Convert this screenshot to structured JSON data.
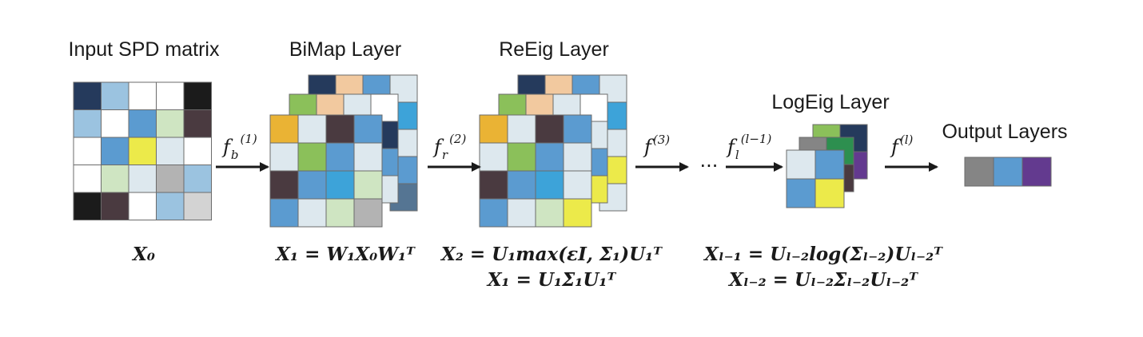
{
  "titles": {
    "input": "Input SPD matrix",
    "bimap": "BiMap Layer",
    "reeig": "ReEig Layer",
    "logeig": "LogEig Layer",
    "output": "Output Layers"
  },
  "functions": {
    "f1": {
      "base": "f",
      "sub": "b",
      "sup": "(1)"
    },
    "f2": {
      "base": "f",
      "sub": "r",
      "sup": "(2)"
    },
    "f3": {
      "base": "f",
      "sup": "(3)"
    },
    "fl1": {
      "base": "f",
      "sub": "l",
      "sup": "(l−1)"
    },
    "fl": {
      "base": "f",
      "sup": "(l)"
    },
    "ellipsis": "···"
  },
  "equations": {
    "x0": "X₀",
    "bimap": "X₁ = W₁X₀W₁ᵀ",
    "reeig_1": "X₂ = U₁max(εI, Σ₁)U₁ᵀ",
    "reeig_2": "X₁ = U₁Σ₁U₁ᵀ",
    "logeig_1": "Xₗ₋₁ = Uₗ₋₂log(Σₗ₋₂)Uₗ₋₂ᵀ",
    "logeig_2": "Xₗ₋₂ = Uₗ₋₂Σₗ₋₂Uₗ₋₂ᵀ"
  },
  "colors": {
    "navy": "#253a5c",
    "ltblue": "#9bc3e0",
    "white": "#ffffff",
    "black": "#1b1b1b",
    "medblue": "#5b9bd0",
    "ltgreen": "#cfe5c2",
    "darkmaroon": "#4a3a40",
    "yellow": "#ecea4a",
    "ltgray": "#dde8ee",
    "gray": "#b3b3b3",
    "silver": "#d3d3d3",
    "orange": "#eab334",
    "green": "#8bc05a",
    "sky": "#3da3d9",
    "peach": "#f2c99f",
    "grayblue": "#557593",
    "purple": "#633a8f",
    "darkgray": "#858585",
    "teal": "#2d8f4f"
  },
  "icons": [
    "arrow-right-icon"
  ]
}
